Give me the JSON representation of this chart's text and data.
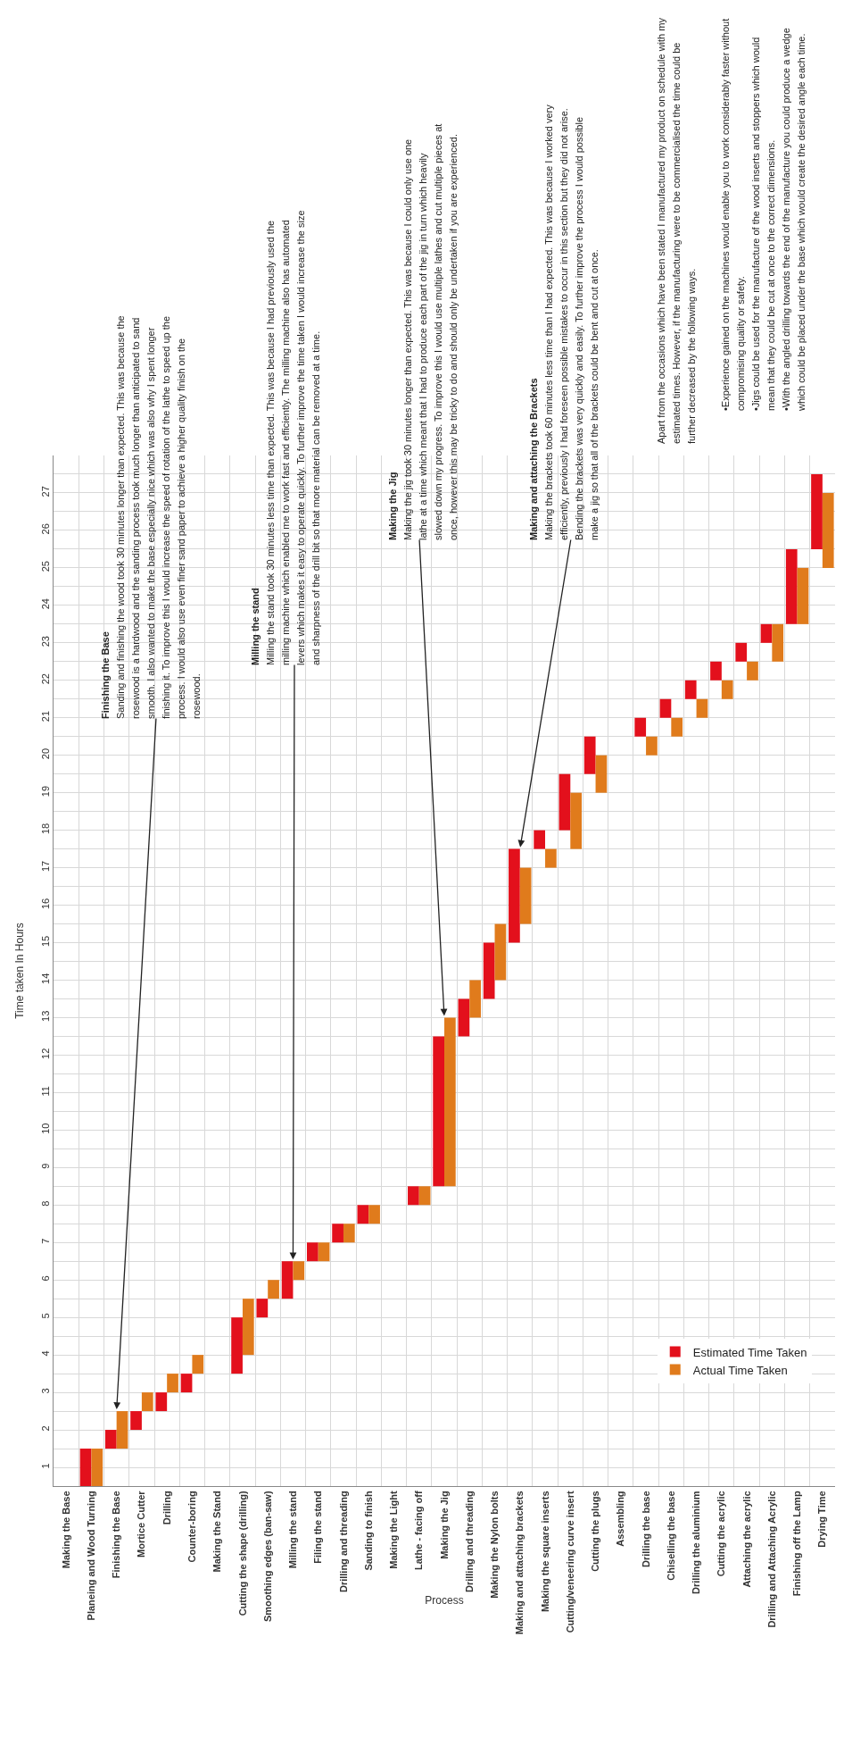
{
  "chart_data": {
    "type": "bar",
    "xlabel": "Process",
    "ylabel": "Time taken In Hours",
    "categories": [
      "Making the Base",
      "Planeing and Wood Turning",
      "Finishing the Base",
      "Mortice Cutter",
      "Drilling",
      "Counter-boring",
      "Making the Stand",
      "Cutting the shape (drilling)",
      "Smoothing edges (ban-saw)",
      "Milling the stand",
      "Filing the stand",
      "Drilling and threading",
      "Sanding to finish",
      "Making the Light",
      "Lathe - facing off",
      "Making the Jig",
      "Drilling and threading",
      "Making the Nylon bolts",
      "Making and attaching brackets",
      "Making the square inserts",
      "Cutting/veneering curve insert",
      "Cutting the plugs",
      "Assembling",
      "Drilling the base",
      "Chiselling the base",
      "Drilling the aluminium",
      "Cutting the acrylic",
      "Attaching the acrylic",
      "Drilling and Attaching Acrylic",
      "Finishing off the Lamp",
      "Drying Time"
    ],
    "series": [
      {
        "name": "Estimated Time Taken",
        "color": "#e3101c",
        "base": [
          null,
          0,
          1,
          1.5,
          2,
          2.5,
          null,
          3,
          4.5,
          5,
          6,
          6.5,
          7,
          null,
          7.5,
          8,
          12,
          13,
          14.5,
          17,
          17.5,
          19,
          null,
          20,
          20.5,
          21,
          21.5,
          22,
          22.5,
          23,
          25
        ],
        "values": [
          null,
          1,
          0.5,
          0.5,
          0.5,
          0.5,
          null,
          1.5,
          0.5,
          1,
          0.5,
          0.5,
          0.5,
          null,
          0.5,
          4,
          1,
          1.5,
          2.5,
          0.5,
          1.5,
          1,
          null,
          0.5,
          0.5,
          0.5,
          0.5,
          0.5,
          0.5,
          2,
          2
        ]
      },
      {
        "name": "Actual Time Taken",
        "color": "#e07b1c",
        "base": [
          null,
          0,
          1,
          2,
          2.5,
          3,
          null,
          3.5,
          5,
          5.5,
          6,
          6.5,
          7,
          null,
          7.5,
          8,
          12.5,
          13.5,
          15,
          16.5,
          17,
          18.5,
          null,
          19.5,
          20,
          20.5,
          21,
          21.5,
          22,
          23,
          24.5
        ],
        "values": [
          null,
          1,
          1,
          0.5,
          0.5,
          0.5,
          null,
          1.5,
          0.5,
          0.5,
          0.5,
          0.5,
          0.5,
          null,
          0.5,
          4.5,
          1,
          1.5,
          1.5,
          0.5,
          1.5,
          1,
          null,
          0.5,
          0.5,
          0.5,
          0.5,
          0.5,
          1,
          1.5,
          2
        ]
      }
    ],
    "ylim": [
      0,
      27.5
    ],
    "yticks": [
      {
        "value": 0.5,
        "label": "1"
      },
      {
        "value": 1.5,
        "label": "2"
      },
      {
        "value": 2.5,
        "label": "3"
      },
      {
        "value": 3.5,
        "label": "4"
      },
      {
        "value": 4.5,
        "label": "5"
      },
      {
        "value": 5.5,
        "label": "6"
      },
      {
        "value": 6.5,
        "label": "7"
      },
      {
        "value": 7.5,
        "label": "8"
      },
      {
        "value": 8.5,
        "label": "9"
      },
      {
        "value": 9.5,
        "label": "10"
      },
      {
        "value": 10.5,
        "label": "11"
      },
      {
        "value": 11.5,
        "label": "12"
      },
      {
        "value": 12.5,
        "label": "13"
      },
      {
        "value": 13.5,
        "label": "14"
      },
      {
        "value": 14.5,
        "label": "15"
      },
      {
        "value": 15.5,
        "label": "16"
      },
      {
        "value": 16.5,
        "label": "17"
      },
      {
        "value": 17.5,
        "label": "18"
      },
      {
        "value": 18.5,
        "label": "19"
      },
      {
        "value": 19.5,
        "label": "20"
      },
      {
        "value": 20.5,
        "label": "21"
      },
      {
        "value": 21.5,
        "label": "22"
      },
      {
        "value": 22.5,
        "label": "23"
      },
      {
        "value": 23.5,
        "label": "24"
      },
      {
        "value": 24.5,
        "label": "25"
      },
      {
        "value": 25.5,
        "label": "26"
      },
      {
        "value": 26.5,
        "label": "27"
      }
    ],
    "grid": true,
    "legend": "bottom right",
    "annotations": [
      {
        "text": "Finishing the Base\nSanding and finishing the wood took 30 minutes longer than expected. This was because the rosewood is a hardwood and the sanding process took much longer than anticipated to sand smooth. I also wanted to make the base especially nice which was also why I spent longer finishing it. To improve this I would increase the speed of rotation of the lathe to speed up the process. I would also use even finer sand paper to achieve a higher quality finish on the rosewood.",
        "x": "Finishing the Base",
        "y": 2
      },
      {
        "text": "Milling the stand\nMilling the stand took 30 minutes less time than expected. This was because I had previously used the milling machine which enabled me to work fast and efficiently. The milling machine also has automated levers which makes it easy to operate quickly. To further improve the time taken I would increase the size and sharpness of the drill bit so that more material can be removed at a time.",
        "x": "Milling the stand",
        "y": 6
      },
      {
        "text": "Making the Jig\nMaking the jig took 30 minutes longer than expected. This was because I could only use one lathe at a time which meant that I had to produce each part of the jig in turn which heavily slowed down my progress. To improve this I would use multiple lathes and cut multiple pieces at once, however this may be tricky to do and should only be undertaken if you are experienced.",
        "x": "Making the Jig",
        "y": 12.5
      },
      {
        "text": "Making and attaching the Brackets\nMaking the brackets took 60 minutes less time than I had expected. This was because I worked very efficiently, previously I had foreseen possible mistakes to occur in this section but they did not arise. Bending the brackets was very quickly and easily. To further improve the process I would possible make a jig so that all of the brackets could be bent and cut at once.",
        "x": "Making and attaching brackets",
        "y": 17
      },
      "Apart from the occasions which have been stated I manufactured my product on schedule with my estimated times. However, if the manufacturing were to be commercialised the time could be further decreased by the following ways.",
      "•Experience gained on the machines would enable you to work considerably faster without compromising quality or safety.\n•Jigs could be used for the manufacture of the wood inserts and stoppers which would mean that they could be cut at once to the correct dimensions.\n•With the angled drilling towards the end of the manufacture you could produce a wedge which could be placed under the base which would create the desired angle each time."
    ]
  }
}
